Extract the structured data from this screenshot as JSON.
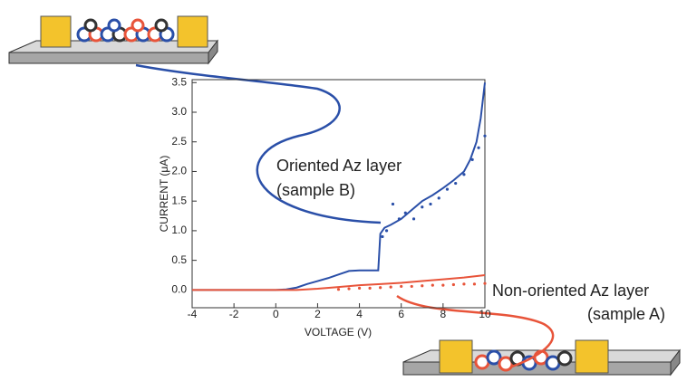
{
  "chart_data": {
    "type": "line",
    "x_label": "VOLTAGE (V)",
    "y_label": "CURRENT (μA)",
    "xlim": [
      -4,
      10
    ],
    "xticks": [
      -4,
      -2,
      0,
      2,
      4,
      6,
      8,
      10
    ],
    "ylim": [
      -0.3,
      3.55
    ],
    "yticks": [
      {
        "value": 0,
        "label": "0.0"
      },
      0.5,
      {
        "value": 1,
        "label": "1.0"
      },
      1.5,
      {
        "value": 2,
        "label": "2.0"
      },
      2.5,
      {
        "value": 3,
        "label": "3.0"
      },
      3.5
    ],
    "series": [
      {
        "color": "#2a4fa8",
        "style": "solid",
        "x": [
          -4,
          0,
          0.5,
          1,
          1.5,
          2,
          2.5,
          3,
          3.5,
          4,
          4.5,
          4.9,
          5,
          5.2,
          5.5,
          6,
          6.5,
          7,
          7.5,
          8,
          8.5,
          9,
          9.3,
          9.6,
          9.8,
          10
        ],
        "values": [
          0,
          0,
          0.01,
          0.04,
          0.1,
          0.15,
          0.2,
          0.26,
          0.32,
          0.33,
          0.33,
          0.33,
          0.95,
          1.05,
          1.1,
          1.2,
          1.35,
          1.5,
          1.6,
          1.72,
          1.85,
          2.0,
          2.2,
          2.5,
          2.9,
          3.5
        ]
      },
      {
        "color": "#2a4fa8",
        "style": "dots",
        "x": [
          5.1,
          5.3,
          5.6,
          5.9,
          6.2,
          6.6,
          7,
          7.4,
          7.8,
          8.2,
          8.6,
          9,
          9.4,
          9.7,
          10
        ],
        "values": [
          0.9,
          1.0,
          1.45,
          1.2,
          1.3,
          1.2,
          1.4,
          1.45,
          1.55,
          1.7,
          1.8,
          1.95,
          2.2,
          2.4,
          2.6
        ]
      },
      {
        "color": "#e8543a",
        "style": "solid",
        "x": [
          -4,
          0,
          1,
          2,
          3,
          4,
          5,
          6,
          7,
          8,
          9,
          10
        ],
        "values": [
          0,
          0,
          0,
          0.02,
          0.05,
          0.08,
          0.1,
          0.12,
          0.15,
          0.18,
          0.21,
          0.25
        ]
      },
      {
        "color": "#e8543a",
        "style": "dots",
        "x": [
          3,
          3.5,
          4,
          4.5,
          5,
          5.5,
          6,
          6.5,
          7,
          7.5,
          8,
          8.5,
          9,
          9.5,
          10
        ],
        "values": [
          0.01,
          0.02,
          0.03,
          0.03,
          0.04,
          0.05,
          0.06,
          0.06,
          0.07,
          0.08,
          0.08,
          0.09,
          0.1,
          0.1,
          0.11
        ]
      }
    ],
    "annotations": [
      {
        "text": "Oriented Az layer",
        "color": "#2a4fa8"
      },
      {
        "text": "(sample B)",
        "color": "#2a4fa8"
      },
      {
        "text": "Non-oriented Az layer",
        "color": "#e8543a"
      },
      {
        "text": "(sample A)",
        "color": "#e8543a"
      }
    ]
  }
}
